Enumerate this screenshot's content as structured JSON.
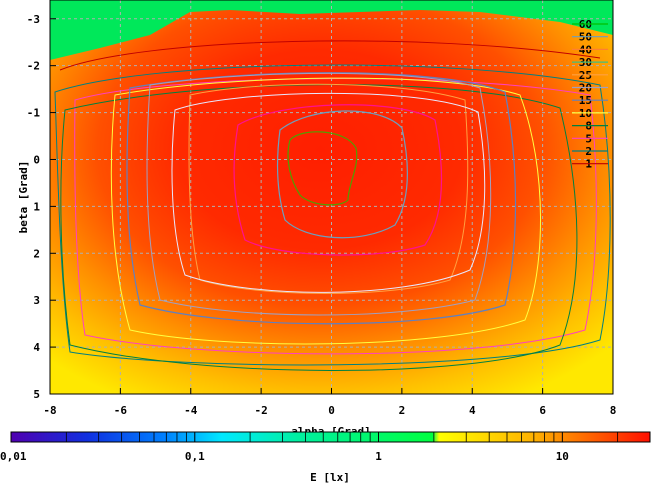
{
  "chart_data": {
    "type": "heatmap",
    "title": "",
    "xlabel": "alpha [Grad]",
    "ylabel": "beta [Grad]",
    "xlim": [
      -8,
      8
    ],
    "ylim": [
      5,
      -3.4
    ],
    "x_ticks": [
      "-8",
      "-6",
      "-4",
      "-2",
      "0",
      "2",
      "4",
      "6",
      "8"
    ],
    "y_ticks": [
      "-3",
      "-2",
      "-1",
      "0",
      "1",
      "2",
      "3",
      "4",
      "5"
    ],
    "grid": true,
    "legend_position": "top-right",
    "contour_levels": [
      {
        "label": "60",
        "color": "#00c000"
      },
      {
        "label": "50",
        "color": "#6aa0c0"
      },
      {
        "label": "40",
        "color": "#ff8030"
      },
      {
        "label": "30",
        "color": "#40c080"
      },
      {
        "label": "25",
        "color": "#ffa040"
      },
      {
        "label": "20",
        "color": "#a0a0c0"
      },
      {
        "label": "15",
        "color": "#6080c0"
      },
      {
        "label": "10",
        "color": "#ffff40"
      },
      {
        "label": "8",
        "color": "#008040"
      },
      {
        "label": "5",
        "color": "#ff40c0"
      },
      {
        "label": "2",
        "color": "#008080"
      },
      {
        "label": "1",
        "color": "#c00000"
      }
    ],
    "colorbar": {
      "label": "E [lx]",
      "scale": "log",
      "range": [
        0.01,
        30
      ],
      "ticks": [
        "0,01",
        "0,1",
        "1",
        "10"
      ]
    }
  }
}
